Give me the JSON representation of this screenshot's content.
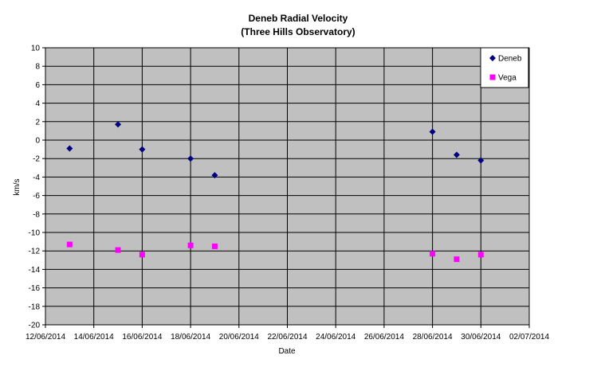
{
  "chart_data": {
    "type": "scatter",
    "title": "Deneb Radial Velocity",
    "subtitle": "(Three Hills Observatory)",
    "xlabel": "Date",
    "ylabel": "km/s",
    "xlim": [
      "12/06/2014",
      "02/07/2014"
    ],
    "ylim": [
      -20,
      10
    ],
    "grid": true,
    "legend_position": "top-right",
    "x_ticks": [
      "12/06/2014",
      "14/06/2014",
      "16/06/2014",
      "18/06/2014",
      "20/06/2014",
      "22/06/2014",
      "24/06/2014",
      "26/06/2014",
      "28/06/2014",
      "30/06/2014",
      "02/07/2014"
    ],
    "y_ticks": [
      10,
      8,
      6,
      4,
      2,
      0,
      -2,
      -4,
      -6,
      -8,
      -10,
      -12,
      -14,
      -16,
      -18,
      -20
    ],
    "plot_background": "#c0c0c0",
    "series": [
      {
        "name": "Deneb",
        "marker": "diamond",
        "color": "#000080",
        "points": [
          {
            "x": "13/06/2014",
            "y": -0.9
          },
          {
            "x": "15/06/2014",
            "y": 1.7
          },
          {
            "x": "16/06/2014",
            "y": -1.0
          },
          {
            "x": "18/06/2014",
            "y": -2.0
          },
          {
            "x": "19/06/2014",
            "y": -3.8
          },
          {
            "x": "28/06/2014",
            "y": 0.9
          },
          {
            "x": "29/06/2014",
            "y": -1.6
          },
          {
            "x": "30/06/2014",
            "y": -2.2
          }
        ]
      },
      {
        "name": "Vega",
        "marker": "square",
        "color": "#ff00ff",
        "points": [
          {
            "x": "13/06/2014",
            "y": -11.3
          },
          {
            "x": "15/06/2014",
            "y": -11.9
          },
          {
            "x": "16/06/2014",
            "y": -12.4
          },
          {
            "x": "18/06/2014",
            "y": -11.4
          },
          {
            "x": "19/06/2014",
            "y": -11.5
          },
          {
            "x": "28/06/2014",
            "y": -12.3
          },
          {
            "x": "29/06/2014",
            "y": -12.9
          },
          {
            "x": "30/06/2014",
            "y": -12.4
          }
        ]
      }
    ]
  }
}
